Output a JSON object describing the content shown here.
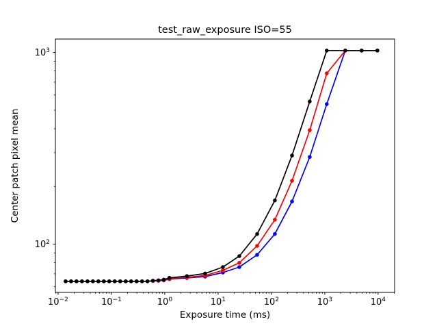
{
  "figure": {
    "background": "#ffffff"
  },
  "chart_data": {
    "type": "line",
    "title": "test_raw_exposure ISO=55",
    "xlabel": "Exposure time (ms)",
    "ylabel": "Center patch pixel mean",
    "xscale": "log",
    "yscale": "log",
    "grid": false,
    "legend": "none",
    "xlim": [
      0.0089,
      20400
    ],
    "ylim": [
      56,
      1175
    ],
    "x_tick_labels": [
      "10^-2",
      "10^-1",
      "10^0",
      "10^1",
      "10^2",
      "10^3",
      "10^4"
    ],
    "y_tick_labels": [
      "10^2",
      "10^3"
    ],
    "x": [
      0.0138,
      0.0175,
      0.0221,
      0.028,
      0.0355,
      0.0449,
      0.0568,
      0.0719,
      0.091,
      0.115,
      0.146,
      0.185,
      0.234,
      0.296,
      0.375,
      0.474,
      0.6,
      0.76,
      0.96,
      1.22,
      2.6,
      5.7,
      12.3,
      25,
      54,
      116,
      243,
      522,
      1090,
      2430,
      4920,
      9700
    ],
    "series": [
      {
        "name": "blue",
        "color": "#0000ff",
        "marker": "dot",
        "values": [
          64,
          64,
          64,
          64,
          64,
          64,
          64,
          64,
          64,
          64,
          64,
          64,
          64,
          64,
          64,
          64,
          64.2,
          64.4,
          64.7,
          65.7,
          66.6,
          67.7,
          71.1,
          75.9,
          88,
          113,
          167,
          285,
          538,
          1023,
          1023,
          1023
        ]
      },
      {
        "name": "red",
        "color": "#ff0000",
        "marker": "dot",
        "values": [
          64,
          64,
          64,
          64,
          64,
          64,
          64,
          64,
          64,
          64,
          64,
          64,
          64,
          64,
          64,
          64,
          64.3,
          64.5,
          64.9,
          66.2,
          67.1,
          68.6,
          73,
          79.9,
          98,
          134,
          214,
          393,
          778,
          1023,
          1023,
          1023
        ]
      },
      {
        "name": "black",
        "color": "#000000",
        "marker": "dot",
        "values": [
          64,
          64,
          64,
          64,
          64,
          64,
          64,
          64,
          64,
          64,
          64,
          64,
          64,
          64,
          64,
          64,
          64.5,
          64.8,
          65.3,
          66.7,
          68.1,
          70.3,
          75.9,
          86.6,
          113,
          169,
          290,
          555,
          1023,
          1023,
          1023,
          1023
        ]
      }
    ]
  }
}
